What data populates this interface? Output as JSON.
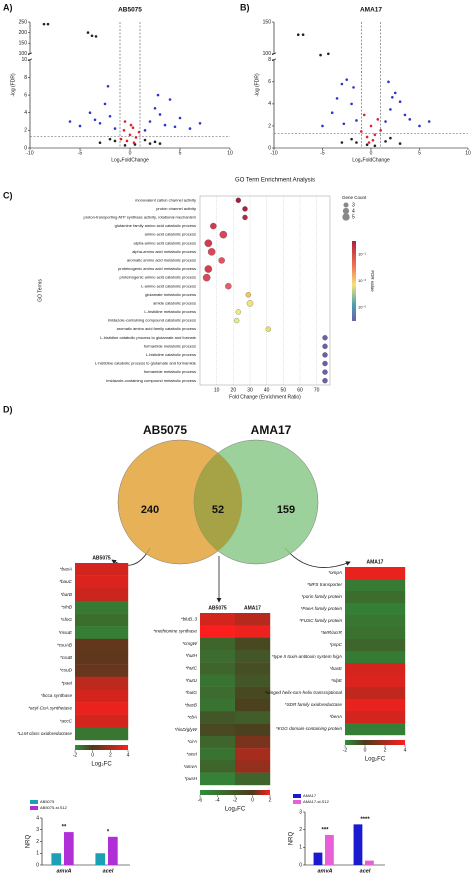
{
  "chart_data": [
    {
      "type": "volcano",
      "panel_label": "A)",
      "title": "AB5075",
      "xlabel": "Log₂FoldChange",
      "ylabel": "-log (FDR)",
      "xlim": [
        -10,
        10
      ],
      "xticks": [
        -10,
        -5,
        0,
        5,
        10
      ],
      "ylim": [
        0,
        250
      ],
      "y_break": [
        10,
        100
      ],
      "yticks": [
        0,
        2,
        4,
        6,
        8,
        10,
        100,
        150,
        200,
        250
      ],
      "vlines": [
        -1,
        1
      ],
      "hline": 1.3,
      "series": [
        {
          "color": "#222222",
          "x": [
            -8.6,
            -8.2,
            -4.2,
            -3.8,
            -3.4,
            -2,
            -1.5,
            1.5,
            2,
            2.5,
            -0.5,
            0.5,
            -3,
            3
          ],
          "values": [
            240,
            240,
            200,
            185,
            182,
            1,
            0.8,
            0.9,
            0.5,
            0.7,
            0.3,
            0.4,
            0.6,
            0.5
          ]
        },
        {
          "color": "#2a35c9",
          "x": [
            -6,
            -5,
            -4,
            -3.5,
            -3,
            -2.5,
            -2,
            -1.5,
            1.5,
            2,
            2.5,
            3,
            3.5,
            4,
            5,
            6,
            7,
            -2.2,
            2.8,
            4.5
          ],
          "values": [
            3,
            2.5,
            4,
            3.2,
            2.8,
            5,
            3.6,
            2.2,
            2,
            3,
            4.5,
            3.8,
            2.6,
            5.5,
            3.4,
            2.2,
            2.8,
            7,
            6,
            2.4
          ]
        },
        {
          "color": "#e0202a",
          "x": [
            -0.9,
            -0.6,
            -0.3,
            0,
            0.3,
            0.6,
            0.9,
            -0.5,
            0.4,
            0.1
          ],
          "values": [
            1,
            2,
            0.8,
            1.5,
            2.3,
            1.2,
            1.8,
            3,
            0.6,
            2.6
          ]
        }
      ]
    },
    {
      "type": "volcano",
      "panel_label": "B)",
      "title": "AMA17",
      "xlabel": "Log₂FoldChange",
      "ylabel": "-log (FDR)",
      "xlim": [
        -10,
        10
      ],
      "xticks": [
        -10,
        -5,
        0,
        5,
        10
      ],
      "ylim": [
        0,
        150
      ],
      "y_break": [
        8,
        100
      ],
      "yticks": [
        0,
        2,
        4,
        6,
        8,
        100,
        150
      ],
      "vlines": [
        -1,
        1
      ],
      "hline": 1.3,
      "series": [
        {
          "color": "#222222",
          "x": [
            -7.5,
            -7,
            -5.2,
            -4.4,
            -2,
            -1.5,
            1.5,
            2,
            -0.4,
            0.4,
            3,
            -3
          ],
          "values": [
            130,
            130,
            98,
            100,
            0.8,
            0.5,
            0.6,
            0.9,
            0.3,
            0.2,
            0.4,
            0.5
          ]
        },
        {
          "color": "#2a35c9",
          "x": [
            -5,
            -4,
            -3.5,
            -3,
            -2.5,
            -2,
            -1.5,
            1.5,
            2,
            2.5,
            3,
            3.5,
            4,
            5,
            -2.8,
            -1.8,
            1.8,
            2.2,
            6
          ],
          "values": [
            2,
            3.2,
            4.5,
            5.8,
            6.2,
            4,
            2.5,
            2.4,
            3.5,
            5,
            4.2,
            3,
            2.6,
            2,
            2.2,
            5.5,
            6,
            4.6,
            2.4
          ]
        },
        {
          "color": "#e0202a",
          "x": [
            -1,
            -0.7,
            -0.4,
            0,
            0.4,
            0.7,
            1,
            -0.2,
            0.2
          ],
          "values": [
            1.5,
            3,
            1,
            2,
            1.2,
            2.6,
            1.6,
            0.5,
            0.7
          ]
        }
      ]
    },
    {
      "type": "dot",
      "panel_label": "C)",
      "title": "GO Term Enrichment Analysis",
      "xlabel": "Fold Change (Enrichment Ratio)",
      "ylabel": "GO Terms",
      "categories": [
        "monovalent cation channel activity",
        "proton channel activity",
        "proton-transporting ATP synthase activity, rotational mechanism",
        "glutamine family amino acid catabolic process",
        "amino acid catabolic process",
        "alpha-amino acid catabolic process",
        "alpha-amino acid metabolic process",
        "aromatic amino acid metabolic process",
        "proteinogenic amino acid metabolic process",
        "proteinogenic amino acid catabolic process",
        "L-amino acid catabolic process",
        "glutamate metabolic process",
        "amide catabolic process",
        "L-histidine metabolic process",
        "imidazole-containing compound catabolic process",
        "aromatic amino acid family catabolic process",
        "L-histidine catabolic process to glutamate and formate",
        "formamide metabolic process",
        "L-histidine catabolic process",
        "L-histidine catabolic process to glutamate and formamide",
        "formamide metabolic process",
        "imidazole-containing compound metabolic process"
      ],
      "values": [
        23,
        27,
        27,
        8,
        14,
        5,
        7,
        13,
        5,
        4,
        17,
        29,
        30,
        23,
        22,
        41,
        75,
        75,
        75,
        75,
        75,
        75
      ],
      "gene_count": [
        3,
        3,
        3,
        4,
        5,
        5,
        5,
        4,
        5,
        5,
        4,
        3,
        4,
        3,
        3,
        3,
        3,
        3,
        3,
        3,
        3,
        3
      ],
      "colors": [
        "#a3203f",
        "#a8243f",
        "#b22a45",
        "#cf3a4e",
        "#d84556",
        "#d33a4e",
        "#d8475a",
        "#e05462",
        "#d63e50",
        "#d94a58",
        "#e0606a",
        "#f2c45a",
        "#f2e27a",
        "#ecea86",
        "#e3ec8e",
        "#eadf6e",
        "#6b5fa8",
        "#6b5fa8",
        "#6b5fa8",
        "#6b5fa8",
        "#6b5fa8",
        "#6b5fa8"
      ],
      "xlim": [
        0,
        78
      ],
      "xticks": [
        10,
        20,
        30,
        40,
        50,
        60,
        70
      ],
      "legend_title": "Gene Count",
      "size_legend": [
        3,
        4,
        5
      ],
      "colorbar_title": "FDR value",
      "colorbar_ticks": [
        "10⁻¹",
        "10⁻³",
        "10⁻⁵"
      ]
    },
    {
      "type": "venn",
      "panel_label": "D)",
      "sets": [
        "AB5075",
        "AMA17"
      ],
      "values": [
        240,
        52,
        159
      ],
      "colors": [
        "#e3a53a",
        "#8cc98a"
      ]
    },
    {
      "type": "heatmap",
      "title": "AB5075",
      "columns": [],
      "rows": [
        "*basA",
        "*bauC",
        "*barB",
        "*sfnB",
        "*sfnG",
        "*msuE",
        "*csuAB",
        "*csuB",
        "*csuD",
        "*paaI",
        "*bcca synthase",
        "*acyl-CoA synthetase",
        "*accC",
        "*LLM class oxidoreductase"
      ],
      "values": [
        [
          3
        ],
        [
          3.2
        ],
        [
          2.8
        ],
        [
          -1.5
        ],
        [
          -1.2
        ],
        [
          -1.6
        ],
        [
          0.5
        ],
        [
          0.4
        ],
        [
          0.6
        ],
        [
          2.5
        ],
        [
          3
        ],
        [
          3.5
        ],
        [
          3
        ],
        [
          -1.4
        ]
      ],
      "clim": [
        -2,
        4
      ],
      "cticks": [
        -2,
        0,
        2,
        4
      ],
      "clabel": "Log₂FC"
    },
    {
      "type": "heatmap",
      "columns": [
        "AB5075",
        "AMA17"
      ],
      "rows": [
        "*bluB_3",
        "*methionine synthase",
        "*cmgW",
        "*hutH",
        "*hutC",
        "*hutU",
        "*hutG",
        "*basB",
        "*cbA",
        "*hisD/glyW",
        "*cirA",
        "*aceI",
        "*amvA",
        "*pusH"
      ],
      "values": [
        [
          1.5,
          1.2
        ],
        [
          2,
          1.8
        ],
        [
          -3,
          -1
        ],
        [
          -3.5,
          -2
        ],
        [
          -3,
          -1.5
        ],
        [
          -4,
          -2
        ],
        [
          -3.5,
          -1
        ],
        [
          -4,
          -0.5
        ],
        [
          -2,
          -2.5
        ],
        [
          -1,
          -0.5
        ],
        [
          -3,
          0.5
        ],
        [
          -4,
          1
        ],
        [
          -3,
          0.8
        ],
        [
          -5,
          -3
        ]
      ],
      "clim": [
        -6,
        2
      ],
      "cticks": [
        -6,
        -4,
        -2,
        0,
        2
      ],
      "clabel": "Log₂FC"
    },
    {
      "type": "heatmap",
      "title": "AMA17",
      "columns": [],
      "rows": [
        "*ompA",
        "*MFS transporter",
        "*porin family protein",
        "*PaeA family protein",
        "*FUSC family protein",
        "*tetR/acrR",
        "*pspC",
        "*type II toxin-antitoxin system higA",
        "*basE",
        "*nlpE",
        "*winged helix-turn-helix transcriptional",
        "*SDR family oxidoreductase",
        "*benA",
        "*KGG domain-containing protein"
      ],
      "values": [
        [
          3.5
        ],
        [
          -1.5
        ],
        [
          -1.2
        ],
        [
          -1.6
        ],
        [
          -1.4
        ],
        [
          -1.3
        ],
        [
          -1
        ],
        [
          -1.5
        ],
        [
          3
        ],
        [
          3.2
        ],
        [
          2.6
        ],
        [
          3.5
        ],
        [
          3
        ],
        [
          -1.6
        ]
      ],
      "clim": [
        -2,
        4
      ],
      "cticks": [
        -2,
        0,
        2,
        4
      ],
      "clabel": "Log₂FC"
    },
    {
      "type": "bar",
      "ylabel": "NRQ",
      "categories": [
        "amvA",
        "aceI"
      ],
      "series": [
        {
          "name": "AB5075",
          "color": "#1aa1b5",
          "values": [
            1,
            1
          ]
        },
        {
          "name": "AB5075-st.S12",
          "color": "#b02fd6",
          "values": [
            2.8,
            2.4
          ]
        }
      ],
      "significance": [
        "**",
        "*"
      ],
      "ylim": [
        0,
        4
      ],
      "yticks": [
        0,
        1,
        2,
        3,
        4
      ]
    },
    {
      "type": "bar",
      "ylabel": "NRQ",
      "categories": [
        "amvA",
        "aceI"
      ],
      "series": [
        {
          "name": "AMA17",
          "color": "#1a1ad0",
          "values": [
            0.7,
            2.3
          ]
        },
        {
          "name": "AMA17-st.S12",
          "color": "#e85fd8",
          "values": [
            1.7,
            0.25
          ]
        }
      ],
      "significance": [
        "***",
        "****"
      ],
      "ylim": [
        0,
        3
      ],
      "yticks": [
        0,
        1,
        2,
        3
      ]
    }
  ]
}
